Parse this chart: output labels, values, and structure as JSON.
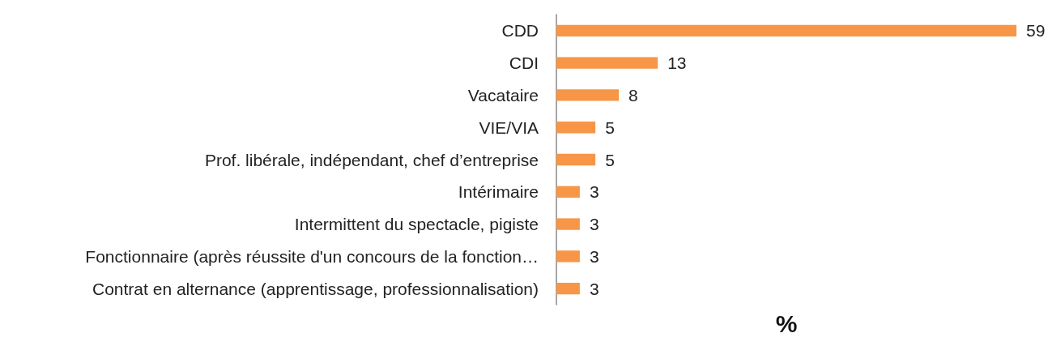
{
  "chart_data": {
    "type": "bar",
    "orientation": "horizontal",
    "xlabel": "%",
    "categories": [
      "CDD",
      "CDI",
      "Vacataire",
      "VIE/VIA",
      "Prof. libérale, indépendant, chef d’entreprise",
      "Intérimaire",
      "Intermittent du spectacle, pigiste",
      "Fonctionnaire (après réussite d'un concours de la fonction…",
      "Contrat en alternance (apprentissage, professionnalisation)"
    ],
    "values": [
      59,
      13,
      8,
      5,
      5,
      3,
      3,
      3,
      3
    ],
    "color": "#f79646",
    "data_labels": true
  }
}
